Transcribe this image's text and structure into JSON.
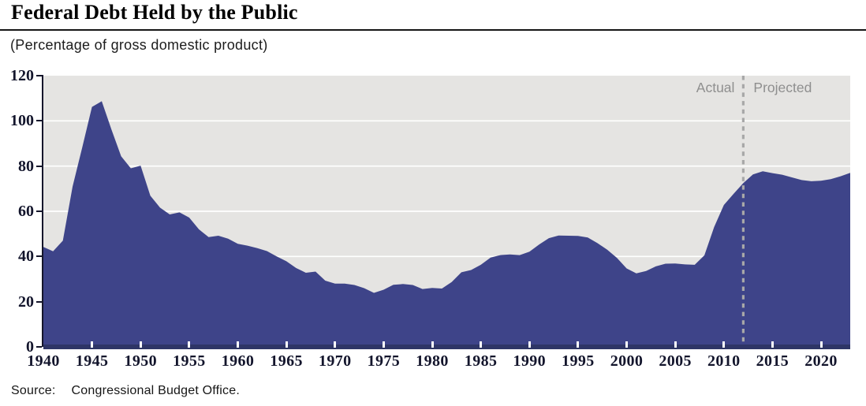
{
  "header": {
    "title": "Federal Debt Held by the Public",
    "subtitle": "(Percentage of gross domestic product)"
  },
  "footer": {
    "source_label": "Source:",
    "source_text": "Congressional Budget Office."
  },
  "chart_data": {
    "type": "area",
    "title": "Federal Debt Held by the Public",
    "ylabel": "(Percentage of gross domestic product)",
    "series_name": "Federal debt held by the public, percent of GDP",
    "xlim": [
      1940,
      2023
    ],
    "ylim": [
      0,
      120
    ],
    "y_ticks": [
      0,
      20,
      40,
      60,
      80,
      100,
      120
    ],
    "x_ticks": [
      1940,
      1945,
      1950,
      1955,
      1960,
      1965,
      1970,
      1975,
      1980,
      1985,
      1990,
      1995,
      2000,
      2005,
      2010,
      2015,
      2020
    ],
    "grid": "horizontal white gridlines on gray plot background",
    "legend_position": "none",
    "divider": {
      "year": 2012,
      "left_label": "Actual",
      "right_label": "Projected"
    },
    "x": [
      1940,
      1941,
      1942,
      1943,
      1944,
      1945,
      1946,
      1947,
      1948,
      1949,
      1950,
      1951,
      1952,
      1953,
      1954,
      1955,
      1956,
      1957,
      1958,
      1959,
      1960,
      1961,
      1962,
      1963,
      1964,
      1965,
      1966,
      1967,
      1968,
      1969,
      1970,
      1971,
      1972,
      1973,
      1974,
      1975,
      1976,
      1977,
      1978,
      1979,
      1980,
      1981,
      1982,
      1983,
      1984,
      1985,
      1986,
      1987,
      1988,
      1989,
      1990,
      1991,
      1992,
      1993,
      1994,
      1995,
      1996,
      1997,
      1998,
      1999,
      2000,
      2001,
      2002,
      2003,
      2004,
      2005,
      2006,
      2007,
      2008,
      2009,
      2010,
      2011,
      2012,
      2013,
      2014,
      2015,
      2016,
      2017,
      2018,
      2019,
      2020,
      2021,
      2022,
      2023
    ],
    "values": [
      44.2,
      42.3,
      47.0,
      70.9,
      88.3,
      106.2,
      108.7,
      96.2,
      84.3,
      79.0,
      80.2,
      66.9,
      61.6,
      58.6,
      59.5,
      57.2,
      52.0,
      48.6,
      49.2,
      47.9,
      45.6,
      44.8,
      43.7,
      42.4,
      40.0,
      37.9,
      34.9,
      32.8,
      33.3,
      29.3,
      28.0,
      28.0,
      27.4,
      26.0,
      23.9,
      25.3,
      27.5,
      27.8,
      27.4,
      25.6,
      26.1,
      25.8,
      28.7,
      33.0,
      34.0,
      36.3,
      39.5,
      40.6,
      40.9,
      40.6,
      42.1,
      45.3,
      48.1,
      49.3,
      49.2,
      49.1,
      48.4,
      45.9,
      43.0,
      39.4,
      34.7,
      32.5,
      33.6,
      35.6,
      36.8,
      36.9,
      36.5,
      36.3,
      40.5,
      53.0,
      62.8,
      67.7,
      72.5,
      76.3,
      77.7,
      76.9,
      76.2,
      75.0,
      73.8,
      73.3,
      73.5,
      74.2,
      75.5,
      77.0
    ],
    "colors": {
      "area_fill": "#3e4489",
      "plot_background": "#e5e4e2",
      "gridline": "#ffffff",
      "x_axis_bar": "#2e3566",
      "y_axis_line": "#15162b",
      "tick_label_text": "#13152c",
      "divider_line": "#a8a8a8",
      "annotation_text": "#8f8f8f"
    }
  }
}
